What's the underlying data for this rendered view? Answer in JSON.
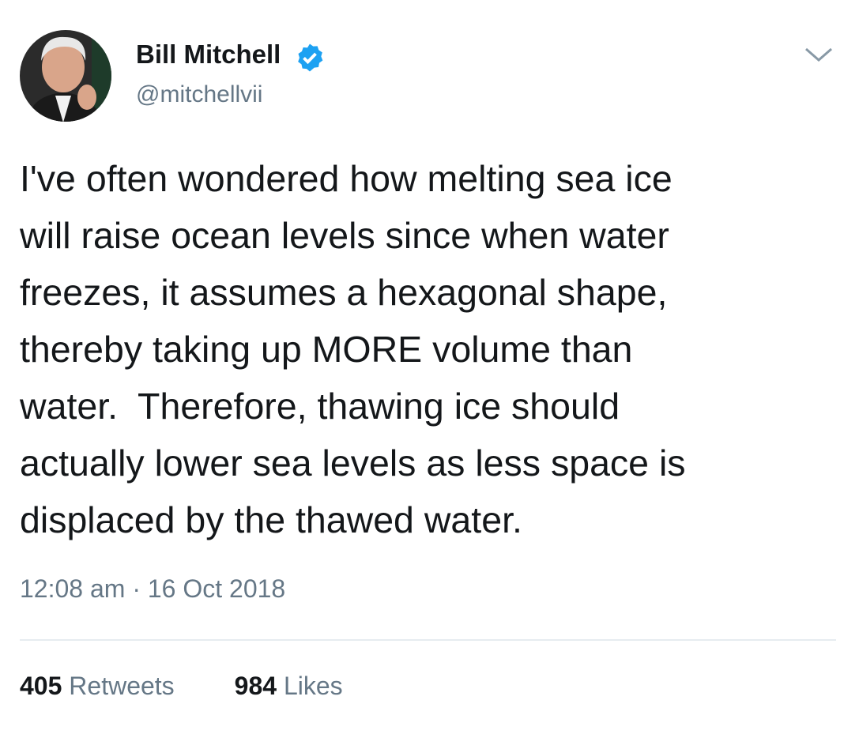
{
  "user": {
    "name": "Bill Mitchell",
    "handle": "@mitchellvii"
  },
  "tweet": {
    "lines": [
      "I've often wondered how melting sea ice",
      "will raise ocean levels since when water",
      "freezes, it assumes a hexagonal shape,",
      "thereby taking up MORE volume than",
      "water.  Therefore, thawing ice should",
      "actually lower sea levels as less space is",
      "displaced by the thawed water."
    ],
    "timestamp": "12:08 am · 16 Oct 2018"
  },
  "stats": {
    "retweets": {
      "count": 405,
      "label": "Retweets"
    },
    "likes": {
      "count": 984,
      "label": "Likes"
    }
  }
}
